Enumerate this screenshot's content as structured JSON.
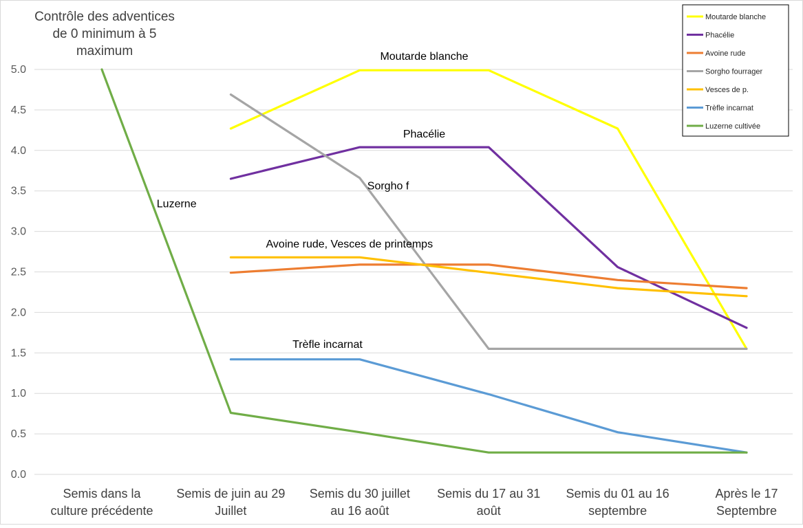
{
  "chart_data": {
    "type": "line",
    "ylabel": [
      "Contrôle des adventices",
      "de 0 minimum à 5",
      "maximum"
    ],
    "categories": [
      [
        "Semis dans la",
        "culture précédente"
      ],
      [
        "Semis de juin au 29",
        "Juillet"
      ],
      [
        "Semis du 30 juillet",
        "au 16 août"
      ],
      [
        "Semis du 17 au 31",
        "août"
      ],
      [
        "Semis du 01 au 16",
        "septembre"
      ],
      [
        "Après le 17",
        "Septembre"
      ]
    ],
    "ylim": [
      0,
      5
    ],
    "yticks": [
      "0.0",
      "0.5",
      "1.0",
      "1.5",
      "2.0",
      "2.5",
      "3.0",
      "3.5",
      "4.0",
      "4.5",
      "5.0"
    ],
    "grid": true,
    "legend_position": "top-right",
    "series": [
      {
        "name": "Moutarde blanche",
        "color": "#FFFF00",
        "values": [
          null,
          4.27,
          4.99,
          4.99,
          4.27,
          1.55
        ]
      },
      {
        "name": "Phacélie",
        "color": "#7030A0",
        "values": [
          null,
          3.65,
          4.04,
          4.04,
          2.56,
          1.81
        ]
      },
      {
        "name": "Avoine rude",
        "color": "#ED7D31",
        "values": [
          null,
          2.49,
          2.59,
          2.59,
          2.4,
          2.3
        ]
      },
      {
        "name": "Sorgho fourrager",
        "color": "#A5A5A5",
        "values": [
          null,
          4.69,
          3.66,
          1.55,
          1.55,
          1.55
        ]
      },
      {
        "name": "Vesces de p.",
        "color": "#FFC000",
        "values": [
          null,
          2.68,
          2.68,
          2.49,
          2.3,
          2.2
        ]
      },
      {
        "name": "Trèfle incarnat",
        "color": "#5B9BD5",
        "values": [
          null,
          1.42,
          1.42,
          0.99,
          0.52,
          0.27
        ]
      },
      {
        "name": "Luzerne cultivée",
        "color": "#70AD47",
        "values": [
          5.0,
          0.76,
          0.52,
          0.27,
          0.27,
          0.27
        ]
      }
    ],
    "annotations": [
      {
        "text": "Moutarde blanche",
        "x": 2.5,
        "y": 5.12
      },
      {
        "text": "Phacélie",
        "x": 2.5,
        "y": 4.16
      },
      {
        "text": "Sorgho f",
        "x": 2.22,
        "y": 3.52
      },
      {
        "text": "Luzerne",
        "x": 0.58,
        "y": 3.3
      },
      {
        "text": "Avoine rude, Vesces de printemps",
        "x": 1.92,
        "y": 2.8
      },
      {
        "text": "Trèfle incarnat",
        "x": 1.75,
        "y": 1.56
      }
    ]
  }
}
